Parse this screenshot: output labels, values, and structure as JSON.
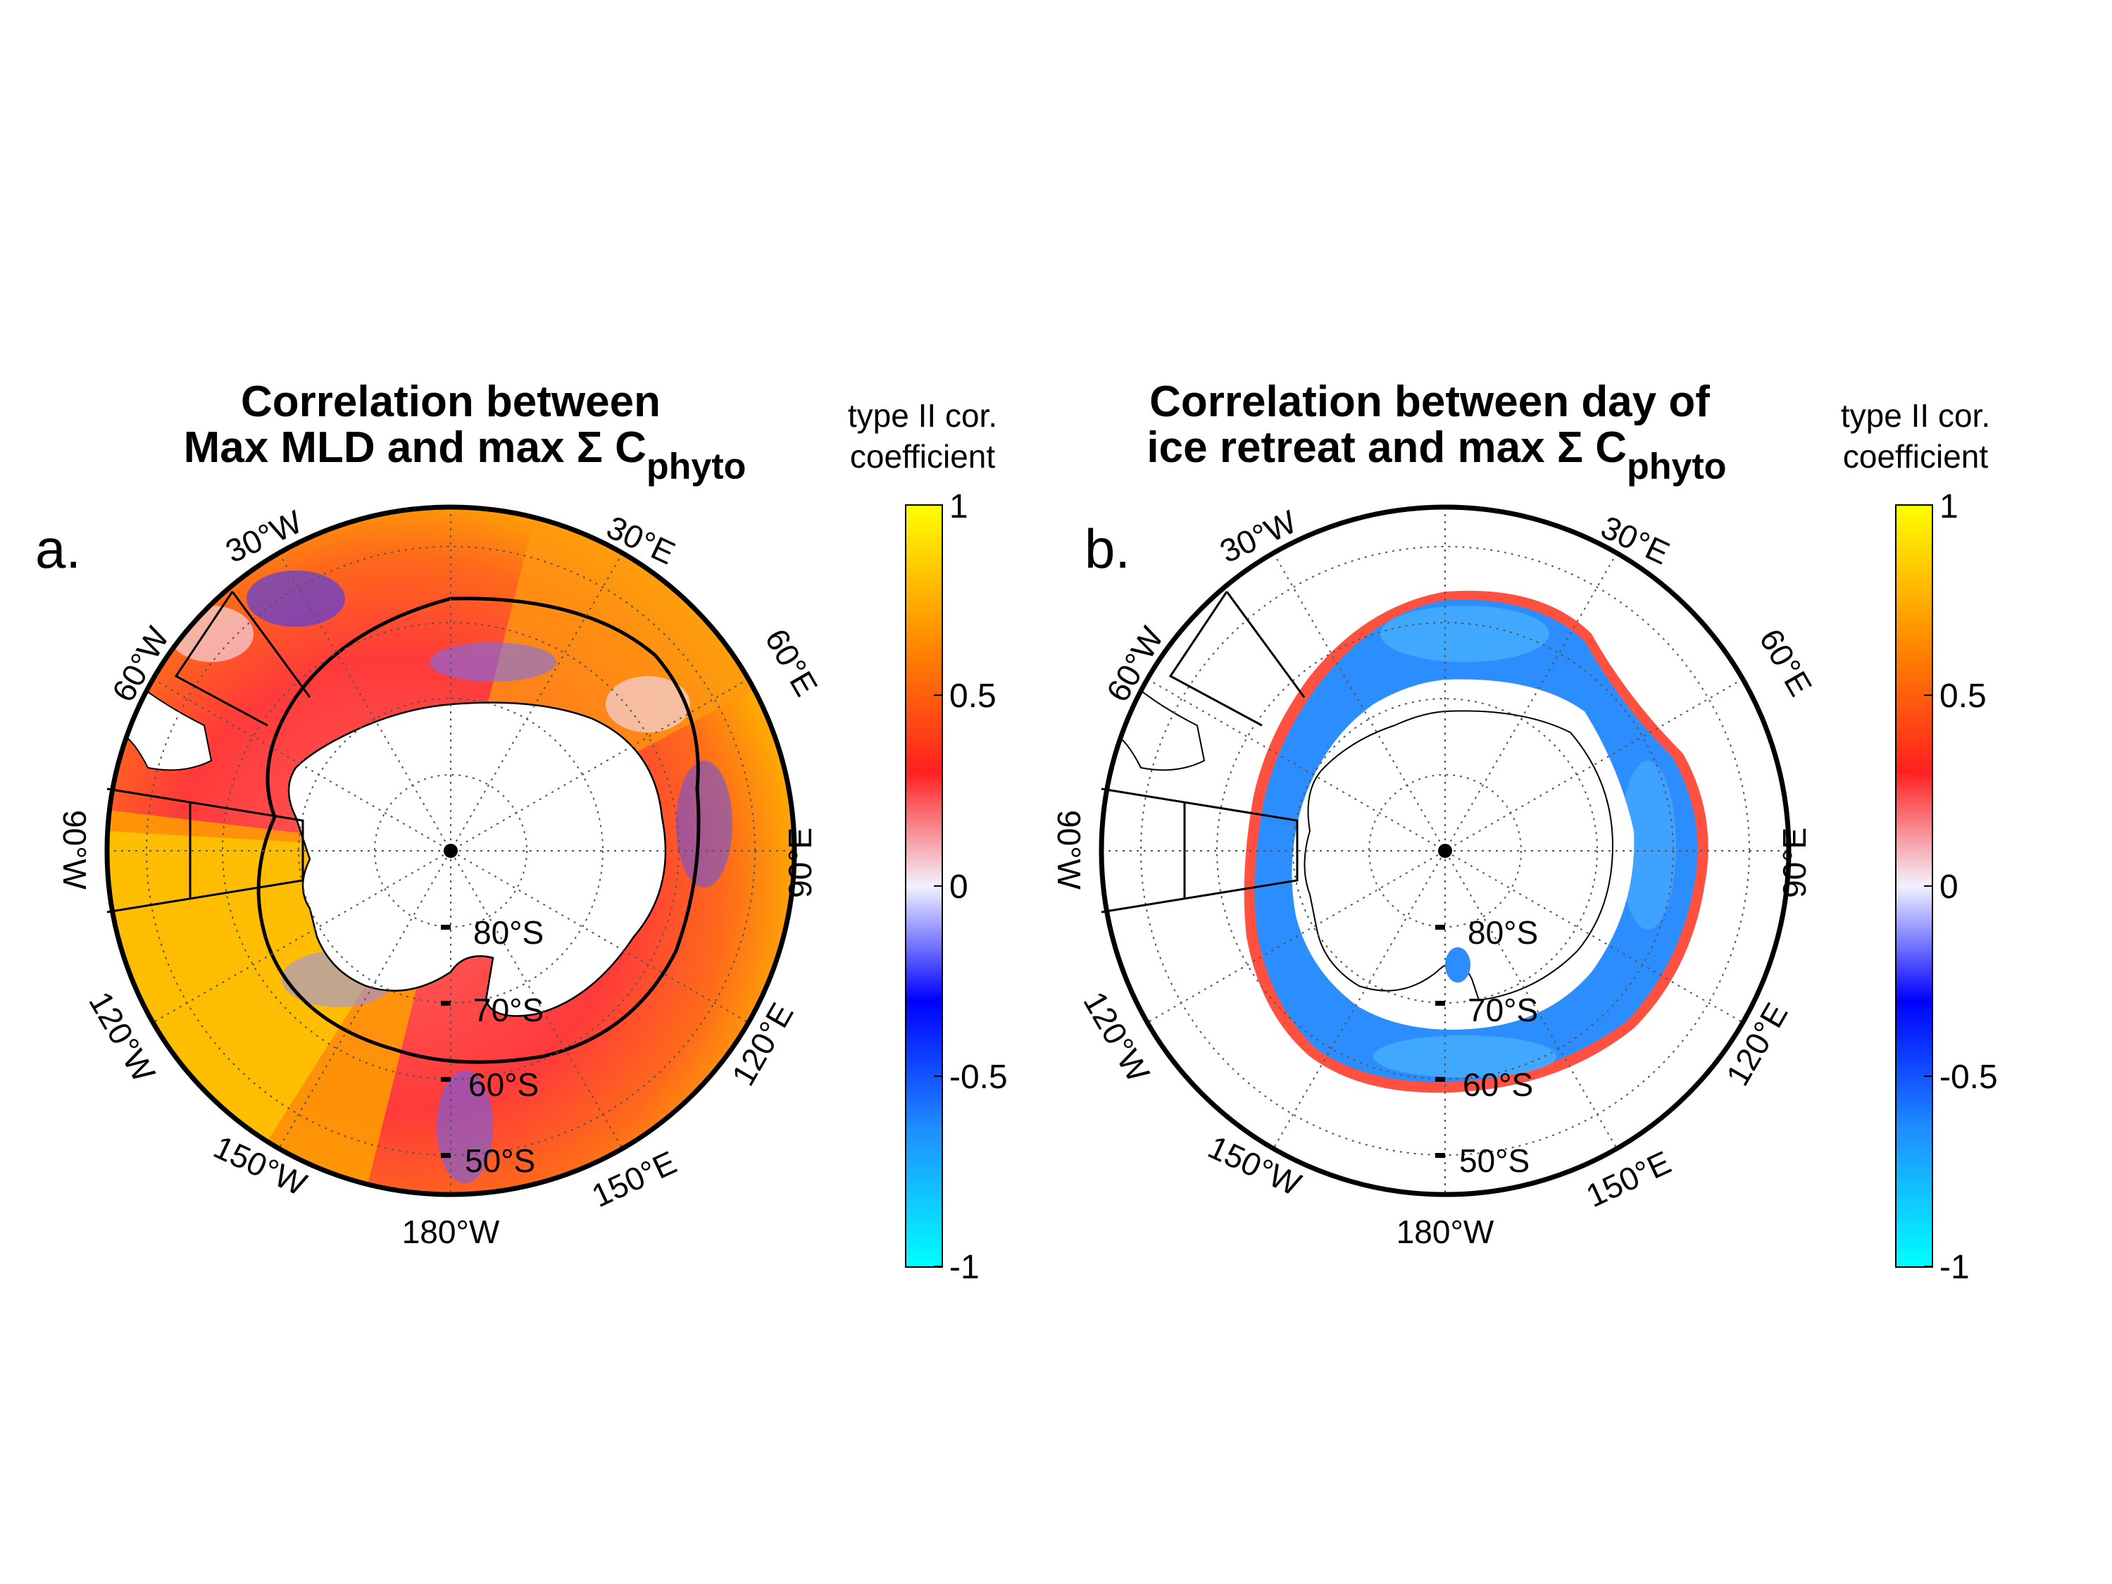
{
  "panels": [
    {
      "letter": "a.",
      "title_line1": "Correlation between",
      "title_line2_main": "Max MLD and max Σ C",
      "title_line2_sub": "phyto",
      "colorbar_title_line1": "type II cor.",
      "colorbar_title_line2": "coefficient",
      "colorbar_ticks": [
        "1",
        "0.5",
        "0",
        "-0.5",
        "-1"
      ],
      "lon_labels": [
        "30°W",
        "30°E",
        "60°W",
        "60°E",
        "90°W",
        "90°E",
        "120°W",
        "120°E",
        "150°W",
        "150°E",
        "180°W"
      ],
      "lat_labels": [
        "80°S",
        "70°S",
        "60°S",
        "50°S"
      ]
    },
    {
      "letter": "b.",
      "title_line1": "Correlation between day of",
      "title_line2_main": "ice retreat and max Σ C",
      "title_line2_sub": "phyto",
      "colorbar_title_line1": "type II cor.",
      "colorbar_title_line2": "coefficient",
      "colorbar_ticks": [
        "1",
        "0.5",
        "0",
        "-0.5",
        "-1"
      ],
      "lon_labels": [
        "30°W",
        "30°E",
        "60°W",
        "60°E",
        "90°W",
        "90°E",
        "120°W",
        "120°E",
        "150°W",
        "150°E",
        "180°W"
      ],
      "lat_labels": [
        "80°S",
        "70°S",
        "60°S",
        "50°S"
      ]
    }
  ],
  "colormap": {
    "stops": [
      "#00ffff",
      "#1f8fff",
      "#0000ff",
      "#f0f0ff",
      "#ff0000",
      "#ff8000",
      "#ffff00"
    ],
    "range": [
      -1,
      1
    ]
  },
  "colors": {
    "land": "#ffffff",
    "coast": "#000000",
    "red_field": "#ff4040",
    "orange_field": "#ff8c1a",
    "yellow_field": "#ffd200",
    "blue_field": "#2a8cff",
    "cyan_field": "#3fb6ff"
  }
}
